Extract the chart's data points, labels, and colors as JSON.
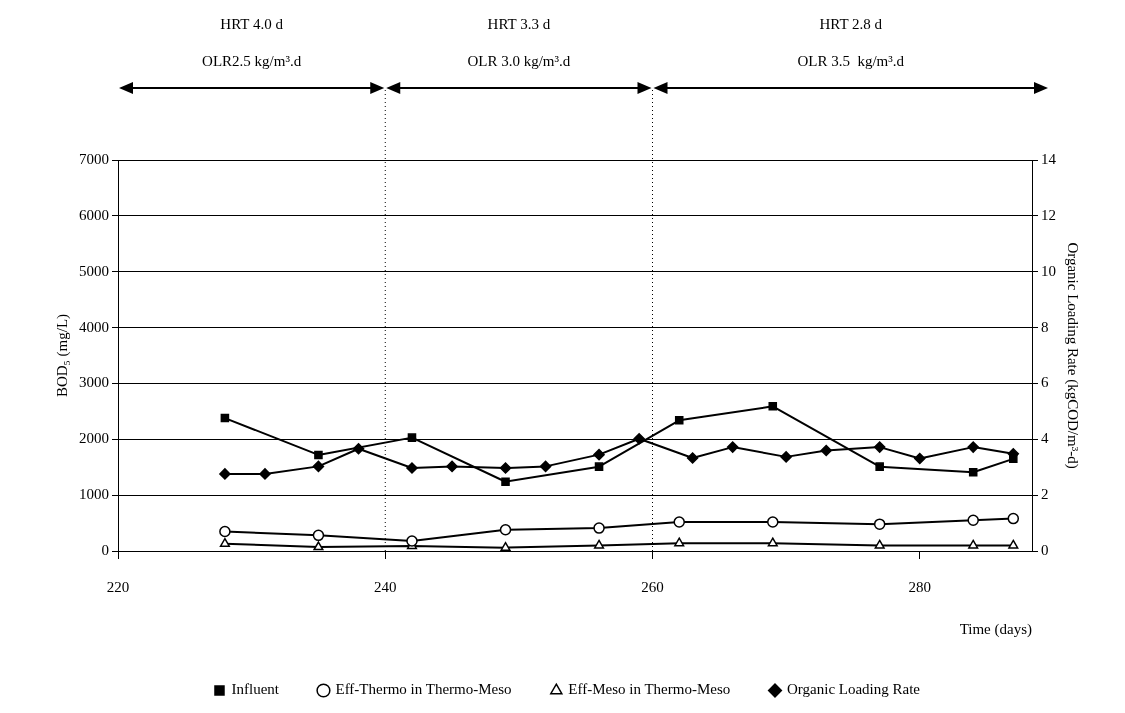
{
  "chart_data": {
    "type": "line",
    "xlabel": "Time (days)",
    "ylabel": "BOD₅ (mg/L)",
    "y2label": "Organic Loading Rate (kgCOD/m³-d)",
    "xlim": [
      220,
      288.4
    ],
    "xticks": [
      220,
      240,
      260,
      280
    ],
    "ylim": [
      0,
      7000
    ],
    "yticks": [
      0,
      1000,
      2000,
      3000,
      4000,
      5000,
      6000,
      7000
    ],
    "y2lim": [
      0,
      14
    ],
    "y2ticks": [
      0,
      2,
      4,
      6,
      8,
      10,
      12,
      14
    ],
    "grid": "y",
    "legend": "bottom",
    "line_style": "solid",
    "ref_lines": [
      {
        "axis": "x",
        "value": 240,
        "line_style": "dotted",
        "color": "#000000"
      },
      {
        "axis": "x",
        "value": 260,
        "line_style": "dotted",
        "color": "#000000"
      }
    ],
    "annotations": [
      "HRT 4.0 d",
      "OLR2.5 kg/m³.d",
      "HRT 3.3 d",
      "OLR 3.0 kg/m³.d",
      "HRT 2.8 d",
      "OLR 3.5  kg/m³.d"
    ],
    "series": [
      {
        "name": "Influent",
        "color": "#000000",
        "marker": "square",
        "x": [
          228,
          235,
          242,
          249,
          256,
          262,
          269,
          277,
          284,
          287
        ],
        "values": [
          2380,
          1720,
          2030,
          1240,
          1510,
          2340,
          2590,
          1510,
          1410,
          1650
        ]
      },
      {
        "name": "Eff-Thermo in Thermo-Meso",
        "color": "#000000",
        "marker": "circle",
        "x": [
          228,
          235,
          242,
          249,
          256,
          262,
          269,
          277,
          284,
          287
        ],
        "values": [
          350,
          280,
          180,
          380,
          410,
          520,
          520,
          480,
          550,
          580
        ]
      },
      {
        "name": "Eff-Meso in Thermo-Meso",
        "color": "#000000",
        "marker": "triangle",
        "x": [
          228,
          235,
          242,
          249,
          256,
          262,
          269,
          277,
          284,
          287
        ],
        "values": [
          130,
          70,
          90,
          60,
          100,
          140,
          140,
          100,
          100,
          100
        ]
      },
      {
        "name": "Organic Loading Rate",
        "color": "#000000",
        "marker": "diamond",
        "axis": "y2",
        "x": [
          228,
          231,
          235,
          238,
          242,
          245,
          249,
          252,
          256,
          259,
          263,
          266,
          270,
          273,
          277,
          280,
          284,
          287
        ],
        "values": [
          2.76,
          2.76,
          3.03,
          3.66,
          2.97,
          3.03,
          2.97,
          3.03,
          3.45,
          4.02,
          3.33,
          3.72,
          3.37,
          3.6,
          3.72,
          3.31,
          3.72,
          3.48
        ]
      }
    ]
  }
}
